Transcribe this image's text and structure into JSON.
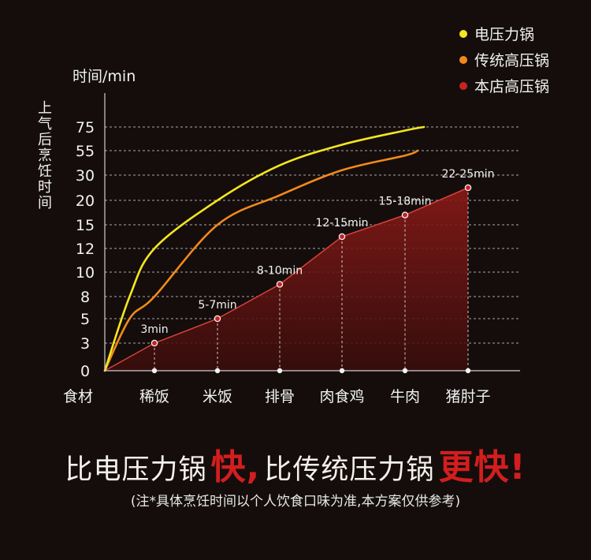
{
  "legend": [
    {
      "label": "电压力锅",
      "color": "#f5e61e"
    },
    {
      "label": "传统高压锅",
      "color": "#f28a1a"
    },
    {
      "label": "本店高压锅",
      "color": "#c42422"
    }
  ],
  "y_unit": "时间/min",
  "y_label_chars": [
    "上",
    "气",
    "后",
    "烹",
    "饪",
    "时",
    "间"
  ],
  "chart_data": {
    "type": "area",
    "x_axis_title": "食材",
    "categories": [
      "稀饭",
      "米饭",
      "排骨",
      "肉食鸡",
      "牛肉",
      "猪肘子"
    ],
    "y_ticks": [
      "0",
      "3",
      "5",
      "8",
      "10",
      "12",
      "15",
      "20",
      "30",
      "55",
      "75"
    ],
    "grid": true,
    "legend_position": "top-right",
    "series": [
      {
        "name": "本店高压锅",
        "color": "#c42422",
        "type": "area",
        "labels": [
          "3min",
          "5-7min",
          "8-10min",
          "12-15min",
          "15-18min",
          "22-25min"
        ],
        "values": [
          3,
          5,
          9,
          13.5,
          17,
          25
        ]
      },
      {
        "name": "传统高压锅",
        "color": "#f28a1a",
        "type": "line",
        "x": [
          0,
          0.5,
          1,
          2,
          3,
          4,
          5,
          5.2
        ],
        "values": [
          0,
          5,
          8,
          15,
          22,
          35,
          50,
          55
        ]
      },
      {
        "name": "电压力锅",
        "color": "#f5e61e",
        "type": "line",
        "x": [
          0,
          0.5,
          1,
          2,
          3,
          4,
          5,
          5.3
        ],
        "values": [
          0,
          8,
          12,
          20,
          40,
          60,
          72,
          75
        ]
      }
    ]
  },
  "headline": {
    "part1": "比电压力锅",
    "part2": "快,",
    "part3": "比传统压力锅",
    "part4": "更快!"
  },
  "note": "(注*具体烹饪时间以个人饮食口味为准,本方案仅供参考)"
}
